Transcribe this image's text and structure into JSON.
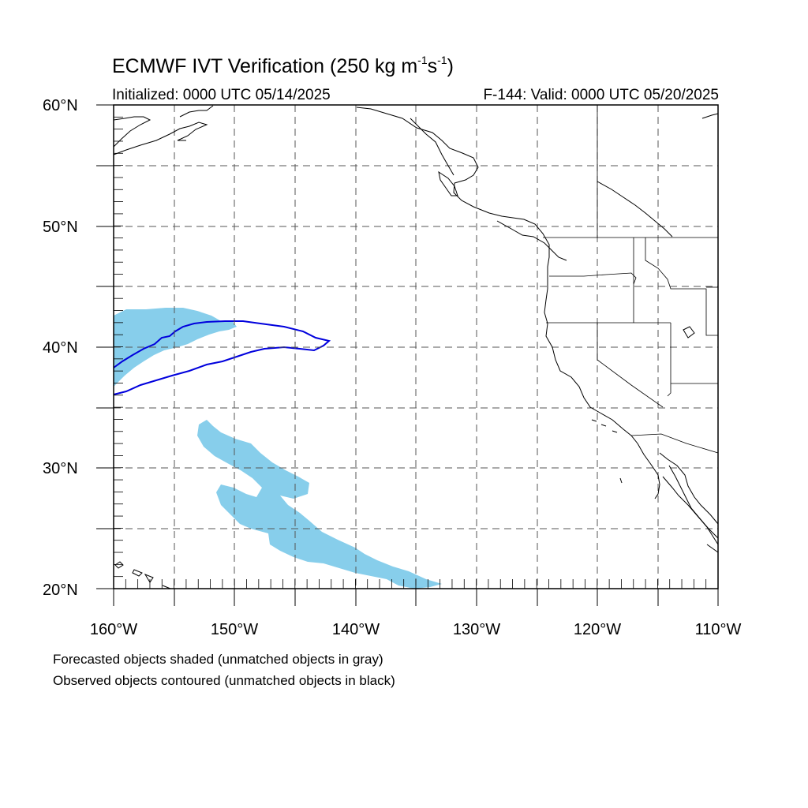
{
  "title": {
    "text_main": "ECMWF IVT Verification (250 kg m",
    "sup1": "-1",
    "text_mid": "s",
    "sup2": "-1",
    "text_end": ")"
  },
  "initialized": "Initialized: 0000 UTC 05/14/2025",
  "valid": "F-144: Valid: 0000 UTC 05/20/2025",
  "captions": [
    "Forecasted objects shaded (unmatched objects in gray)",
    "Observed objects contoured (unmatched objects in black)"
  ],
  "axes": {
    "lat_labels": [
      "60°N",
      "50°N",
      "40°N",
      "30°N",
      "20°N"
    ],
    "lon_labels": [
      "160°W",
      "150°W",
      "140°W",
      "130°W",
      "120°W",
      "110°W"
    ],
    "lat_range": [
      20,
      60
    ],
    "lon_range": [
      -160,
      -110
    ]
  },
  "colors": {
    "forecast_fill": "#87ceeb",
    "observed_contour": "#0000dd",
    "coast": "#000000",
    "grid": "#555555"
  }
}
